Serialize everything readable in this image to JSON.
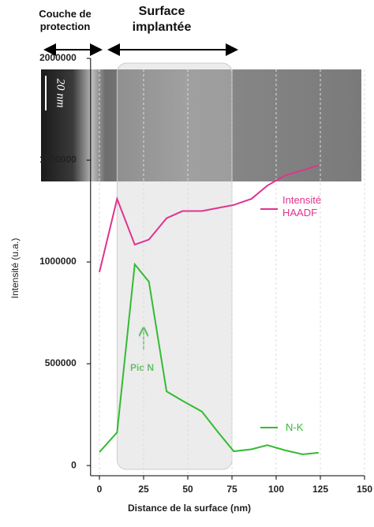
{
  "chart_data": {
    "type": "line",
    "annotations": [
      "Couche de protection",
      "Surface implantée",
      "20 nm",
      "Pic N"
    ],
    "xlabel": "Distance de la surface (nm)",
    "ylabel": "Intensité (u.a.)",
    "x": [
      0,
      10,
      20,
      28,
      38,
      47,
      58,
      67,
      76,
      86,
      95,
      105,
      115,
      124
    ],
    "series": [
      {
        "name": "Intensité HAADF",
        "color": "#e0338f",
        "values": [
          950000,
          1310000,
          1085000,
          1110000,
          1215000,
          1250000,
          1250000,
          1265000,
          1280000,
          1310000,
          1375000,
          1425000,
          1450000,
          1475000
        ]
      },
      {
        "name": "N-K",
        "color": "#33bb33",
        "values": [
          66000,
          163000,
          988000,
          903000,
          364000,
          318000,
          265000,
          165000,
          70000,
          80000,
          100000,
          75000,
          55000,
          63000
        ]
      }
    ],
    "shaded_range": [
      10,
      75
    ],
    "xlim": [
      -5,
      150
    ],
    "xticks": [
      0,
      25,
      50,
      75,
      100,
      125,
      150
    ],
    "ylim": [
      -50000,
      2000000
    ],
    "yticks": [
      0,
      500000,
      1000000,
      1500000,
      2000000
    ],
    "grid": true
  }
}
